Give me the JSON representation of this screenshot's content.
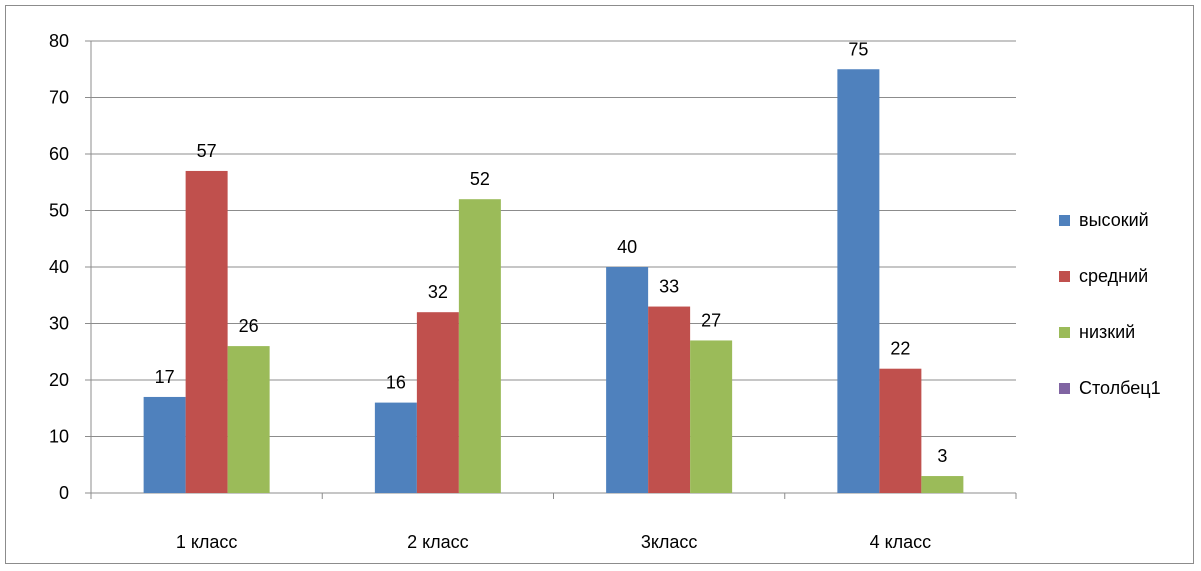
{
  "chart_data": {
    "type": "bar",
    "title": "",
    "xlabel": "",
    "ylabel": "",
    "categories": [
      "1 класс",
      "2 класс",
      "3класс",
      "4 класс"
    ],
    "series": [
      {
        "name": "высокий",
        "color": "#4f81bd",
        "values": [
          17,
          16,
          40,
          75
        ]
      },
      {
        "name": "средний",
        "color": "#c0504d",
        "values": [
          57,
          32,
          33,
          22
        ]
      },
      {
        "name": "низкий",
        "color": "#9bbb59",
        "values": [
          26,
          52,
          27,
          3
        ]
      },
      {
        "name": "Столбец1",
        "color": "#8064a2",
        "values": [
          null,
          null,
          null,
          null
        ]
      }
    ],
    "ylim": [
      0,
      80
    ],
    "yticks": [
      0,
      10,
      20,
      30,
      40,
      50,
      60,
      70,
      80
    ],
    "grid": true,
    "data_labels": true,
    "legend_position": "right"
  }
}
